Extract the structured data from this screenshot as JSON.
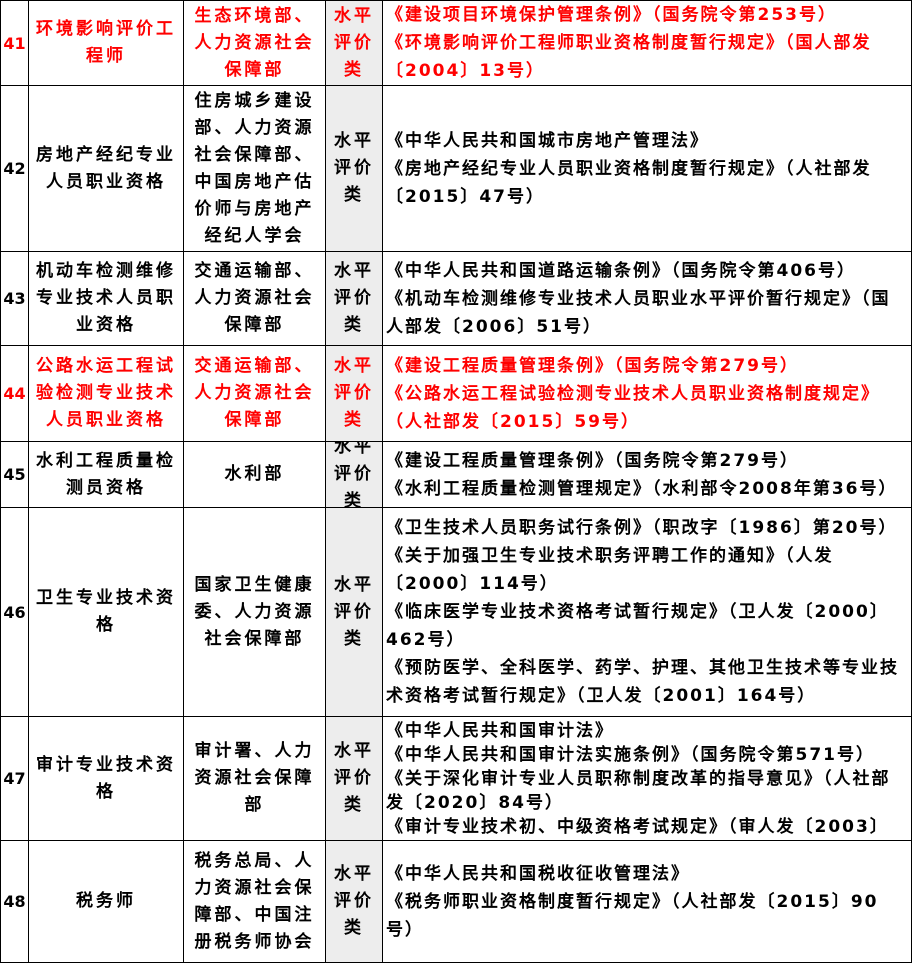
{
  "table": {
    "colors": {
      "highlight_red": "#ff0000",
      "category_bg": "#ededed",
      "border": "#000000",
      "text": "#000000"
    },
    "rows": [
      {
        "num": "41",
        "name": "环境影响评价工程师",
        "dept": "生态环境部、人力资源社会保障部",
        "category": "水平评价类",
        "basis": [
          "《建设项目环境保护管理条例》（国务院令第253号）",
          "《环境影响评价工程师职业资格制度暂行规定》（国人部发〔2004〕13号）"
        ],
        "highlight": true
      },
      {
        "num": "42",
        "name": "房地产经纪专业人员职业资格",
        "dept": "住房城乡建设部、人力资源社会保障部、中国房地产估价师与房地产经纪人学会",
        "category": "水平评价类",
        "basis": [
          "《中华人民共和国城市房地产管理法》",
          "《房地产经纪专业人员职业资格制度暂行规定》（人社部发〔2015〕47号）"
        ],
        "highlight": false
      },
      {
        "num": "43",
        "name": "机动车检测维修专业技术人员职业资格",
        "dept": "交通运输部、人力资源社会保障部",
        "category": "水平评价类",
        "basis": [
          "《中华人民共和国道路运输条例》（国务院令第406号）",
          "《机动车检测维修专业技术人员职业水平评价暂行规定》（国人部发〔2006〕51号）"
        ],
        "highlight": false
      },
      {
        "num": "44",
        "name": "公路水运工程试验检测专业技术人员职业资格",
        "dept": "交通运输部、人力资源社会保障部",
        "category": "水平评价类",
        "basis": [
          "《建设工程质量管理条例》（国务院令第279号）",
          "《公路水运工程试验检测专业技术人员职业资格制度规定》（人社部发〔2015〕59号）"
        ],
        "highlight": true
      },
      {
        "num": "45",
        "name": "水利工程质量检测员资格",
        "dept": "水利部",
        "category": "水平评价类",
        "basis": [
          "《建设工程质量管理条例》（国务院令第279号）",
          "《水利工程质量检测管理规定》（水利部令2008年第36号）"
        ],
        "highlight": false
      },
      {
        "num": "46",
        "name": "卫生专业技术资格",
        "dept": "国家卫生健康委、人力资源社会保障部",
        "category": "水平评价类",
        "basis": [
          "《卫生技术人员职务试行条例》（职改字〔1986〕第20号）",
          "《关于加强卫生专业技术职务评聘工作的通知》（人发〔2000〕114号）",
          "《临床医学专业技术资格考试暂行规定》（卫人发〔2000〕462号）",
          "《预防医学、全科医学、药学、护理、其他卫生技术等专业技术资格考试暂行规定》（卫人发〔2001〕164号）"
        ],
        "highlight": false
      },
      {
        "num": "47",
        "name": "审计专业技术资格",
        "dept": "审计署、人力资源社会保障部",
        "category": "水平评价类",
        "basis": [
          "《中华人民共和国审计法》",
          "《中华人民共和国审计法实施条例》（国务院令第571号）",
          "《关于深化审计专业人员职称制度改革的指导意见》（人社部发〔2020〕84号）",
          "《审计专业技术初、中级资格考试规定》（审人发〔2003〕"
        ],
        "highlight": false
      },
      {
        "num": "48",
        "name": "税务师",
        "dept": "税务总局、人力资源社会保障部、中国注册税务师协会",
        "category": "水平评价类",
        "basis": [
          "《中华人民共和国税收征收管理法》",
          "《税务师职业资格制度暂行规定》（人社部发〔2015〕90号）"
        ],
        "highlight": false
      }
    ]
  }
}
